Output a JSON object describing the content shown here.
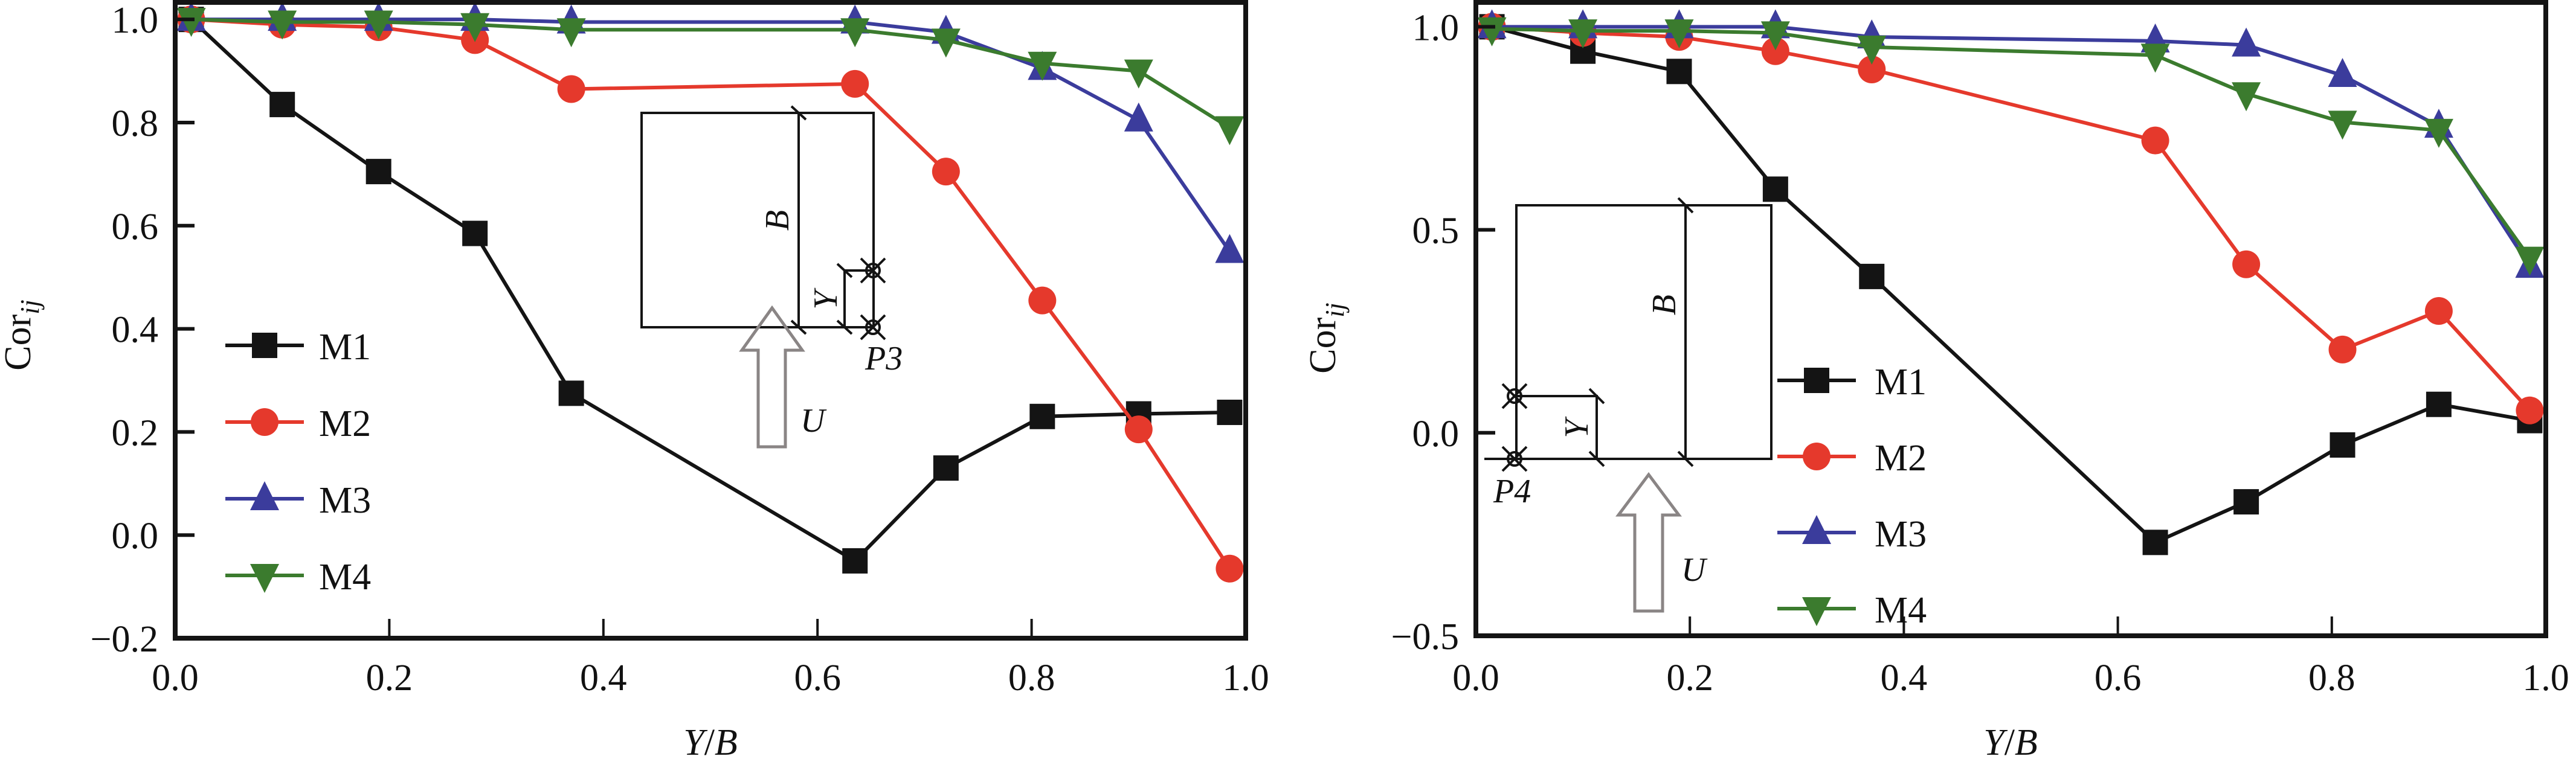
{
  "colors": {
    "M1": "#141414",
    "M2": "#e5392c",
    "M3": "#3b3c9c",
    "M4": "#3b7b2e",
    "axis": "#141414",
    "arrow": "#8a8585"
  },
  "chart_data": [
    {
      "type": "line",
      "panel": "left",
      "xlabel": "Y/B",
      "xlabel_parts": {
        "a": "Y",
        "sep": "/",
        "b": "B"
      },
      "ylabel": "Cor_ij",
      "ylabel_parts": {
        "main": "Cor",
        "sub": "ij"
      },
      "xlim": [
        0.0,
        1.0
      ],
      "ylim": [
        -0.2,
        1.033
      ],
      "xticks": [
        0.0,
        0.2,
        0.4,
        0.6,
        0.8,
        1.0
      ],
      "xtick_labels": [
        "0.0",
        "0.2",
        "0.4",
        "0.6",
        "0.8",
        "1.0"
      ],
      "yticks": [
        -0.2,
        0.0,
        0.2,
        0.4,
        0.6,
        0.8,
        1.0
      ],
      "ytick_labels": [
        "−0.2",
        "0.0",
        "0.2",
        "0.4",
        "0.6",
        "0.8",
        "1.0"
      ],
      "grid": false,
      "legend_position": "center-left",
      "x": [
        0.015,
        0.1,
        0.19,
        0.28,
        0.37,
        0.635,
        0.72,
        0.81,
        0.9,
        0.985
      ],
      "series": [
        {
          "name": "M1",
          "marker": "square",
          "values": [
            1.0,
            0.835,
            0.705,
            0.585,
            0.275,
            -0.05,
            0.13,
            0.23,
            0.235,
            0.238
          ]
        },
        {
          "name": "M2",
          "marker": "circle",
          "values": [
            1.0,
            0.99,
            0.985,
            0.96,
            0.865,
            0.875,
            0.705,
            0.455,
            0.205,
            -0.065
          ]
        },
        {
          "name": "M3",
          "marker": "triangle-up",
          "values": [
            1.0,
            1.0,
            1.0,
            1.0,
            0.995,
            0.995,
            0.975,
            0.905,
            0.805,
            0.55
          ]
        },
        {
          "name": "M4",
          "marker": "triangle-down",
          "values": [
            1.0,
            0.995,
            0.995,
            0.99,
            0.98,
            0.98,
            0.96,
            0.915,
            0.9,
            0.79
          ]
        }
      ],
      "inset": {
        "B": "B",
        "Y": "Y",
        "point": "P3",
        "flow": "U"
      }
    },
    {
      "type": "line",
      "panel": "right",
      "xlabel": "Y/B",
      "xlabel_parts": {
        "a": "Y",
        "sep": "/",
        "b": "B"
      },
      "ylabel": "Cor_ij",
      "ylabel_parts": {
        "main": "Cor",
        "sub": "ij"
      },
      "xlim": [
        0.0,
        1.0
      ],
      "ylim": [
        -0.5,
        1.06
      ],
      "xticks": [
        0.0,
        0.2,
        0.4,
        0.6,
        0.8,
        1.0
      ],
      "xtick_labels": [
        "0.0",
        "0.2",
        "0.4",
        "0.6",
        "0.8",
        "1.0"
      ],
      "yticks": [
        -0.5,
        0.0,
        0.5,
        1.0
      ],
      "ytick_labels": [
        "−0.5",
        "0.0",
        "0.5",
        "1.0"
      ],
      "grid": false,
      "legend_position": "lower-center",
      "x": [
        0.015,
        0.1,
        0.19,
        0.28,
        0.37,
        0.635,
        0.72,
        0.81,
        0.9,
        0.985
      ],
      "series": [
        {
          "name": "M1",
          "marker": "square",
          "values": [
            1.0,
            0.94,
            0.89,
            0.6,
            0.385,
            -0.27,
            -0.17,
            -0.03,
            0.07,
            0.03
          ]
        },
        {
          "name": "M2",
          "marker": "circle",
          "values": [
            1.0,
            0.985,
            0.975,
            0.94,
            0.895,
            0.72,
            0.415,
            0.205,
            0.3,
            0.055
          ]
        },
        {
          "name": "M3",
          "marker": "triangle-up",
          "values": [
            1.0,
            1.0,
            1.0,
            1.0,
            0.975,
            0.965,
            0.955,
            0.88,
            0.755,
            0.41
          ]
        },
        {
          "name": "M4",
          "marker": "triangle-down",
          "values": [
            0.995,
            0.99,
            0.99,
            0.985,
            0.95,
            0.93,
            0.835,
            0.765,
            0.745,
            0.43
          ]
        }
      ],
      "inset": {
        "B": "B",
        "Y": "Y",
        "point": "P4",
        "flow": "U"
      }
    }
  ]
}
